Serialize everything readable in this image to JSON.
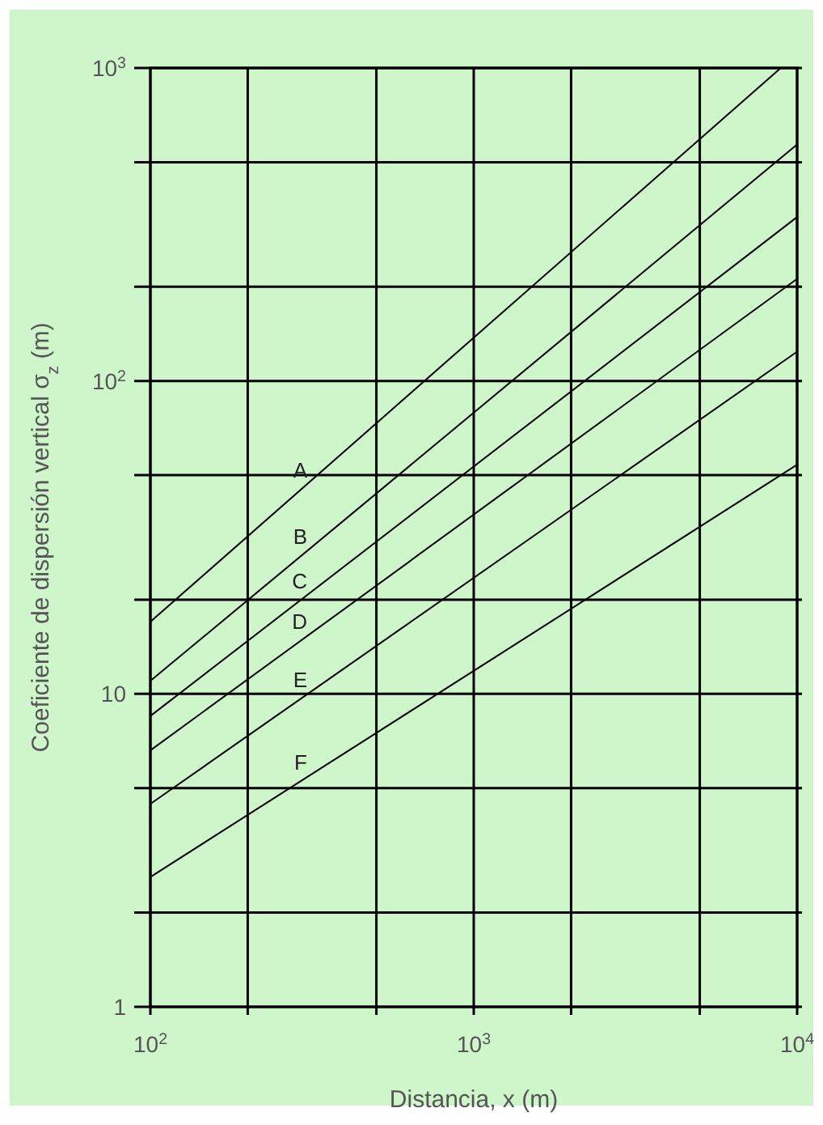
{
  "chart_data": {
    "type": "line",
    "xlabel": "Distancia, x (m)",
    "ylabel": "Coeficiente de dispersión vertical σ$_{z}$ (m)",
    "log": "xy",
    "grid": true,
    "marker": "none",
    "line_style": "solid",
    "xlim": [
      100,
      10000
    ],
    "ylim": [
      1,
      1000
    ],
    "xticks": [
      {
        "value": 100,
        "label": "10$^{2}$"
      },
      {
        "value": 200,
        "label": null
      },
      {
        "value": 500,
        "label": null
      },
      {
        "value": 1000,
        "label": "10$^{3}$"
      },
      {
        "value": 2000,
        "label": null
      },
      {
        "value": 5000,
        "label": null
      },
      {
        "value": 10000,
        "label": "10$^{4}$"
      }
    ],
    "yticks": [
      1,
      {
        "value": 2,
        "label": null
      },
      {
        "value": 5,
        "label": null
      },
      10,
      {
        "value": 20,
        "label": null
      },
      {
        "value": 50,
        "label": null
      },
      {
        "value": 100,
        "label": "10$^{2}$"
      },
      {
        "value": 200,
        "label": null
      },
      {
        "value": 500,
        "label": null
      },
      {
        "value": 1000,
        "label": "10$^{3}$"
      }
    ],
    "series": [
      {
        "name": "A",
        "color": "#000000",
        "x": [
          100,
          8900
        ],
        "values": [
          17,
          1000
        ]
      },
      {
        "name": "B",
        "color": "#000000",
        "x": [
          100,
          10000
        ],
        "values": [
          11,
          570
        ]
      },
      {
        "name": "C",
        "color": "#000000",
        "x": [
          100,
          10000
        ],
        "values": [
          8.5,
          334
        ]
      },
      {
        "name": "D",
        "color": "#000000",
        "x": [
          100,
          10000
        ],
        "values": [
          6.6,
          212
        ]
      },
      {
        "name": "E",
        "color": "#000000",
        "x": [
          100,
          10000
        ],
        "values": [
          4.45,
          124
        ]
      },
      {
        "name": "F",
        "color": "#000000",
        "x": [
          100,
          10000
        ],
        "values": [
          2.6,
          54
        ]
      }
    ]
  }
}
